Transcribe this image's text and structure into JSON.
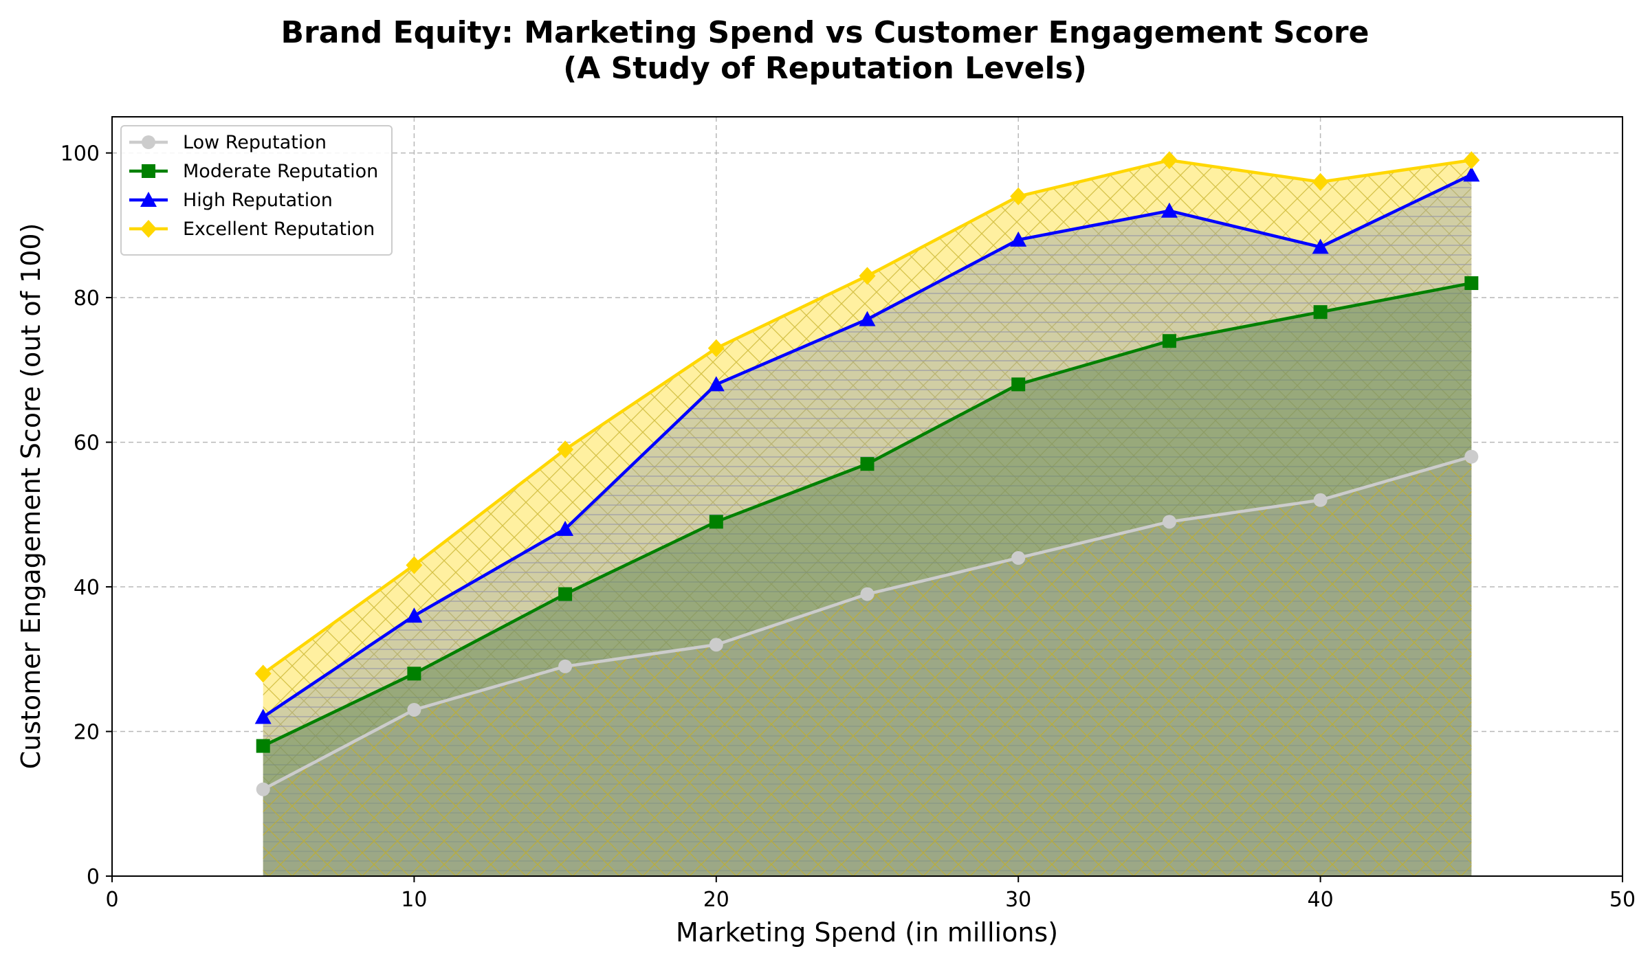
{
  "chart_data": {
    "type": "area",
    "title": "Brand Equity: Marketing Spend vs Customer Engagement Score",
    "subtitle": "(A Study of Reputation Levels)",
    "xlabel": "Marketing Spend (in millions)",
    "ylabel": "Customer Engagement Score (out of 100)",
    "xlim": [
      0,
      50
    ],
    "ylim": [
      0,
      105
    ],
    "xticks": [
      0,
      10,
      20,
      30,
      40,
      50
    ],
    "yticks": [
      0,
      20,
      40,
      60,
      80,
      100
    ],
    "grid": true,
    "legend_position": "top-left",
    "x": [
      5,
      10,
      15,
      20,
      25,
      30,
      35,
      40,
      45
    ],
    "series": [
      {
        "name": "Low Reputation",
        "color": "#cccccc",
        "marker": "circle",
        "values": [
          12,
          23,
          29,
          32,
          39,
          44,
          49,
          52,
          58
        ]
      },
      {
        "name": "Moderate Reputation",
        "color": "#008000",
        "marker": "square",
        "values": [
          18,
          28,
          39,
          49,
          57,
          68,
          74,
          78,
          82
        ]
      },
      {
        "name": "High Reputation",
        "color": "#0000ff",
        "marker": "triangle",
        "values": [
          22,
          36,
          48,
          68,
          77,
          88,
          92,
          87,
          97
        ]
      },
      {
        "name": "Excellent Reputation",
        "color": "#ffd700",
        "marker": "diamond",
        "values": [
          28,
          43,
          59,
          73,
          83,
          94,
          99,
          96,
          99
        ]
      }
    ]
  }
}
